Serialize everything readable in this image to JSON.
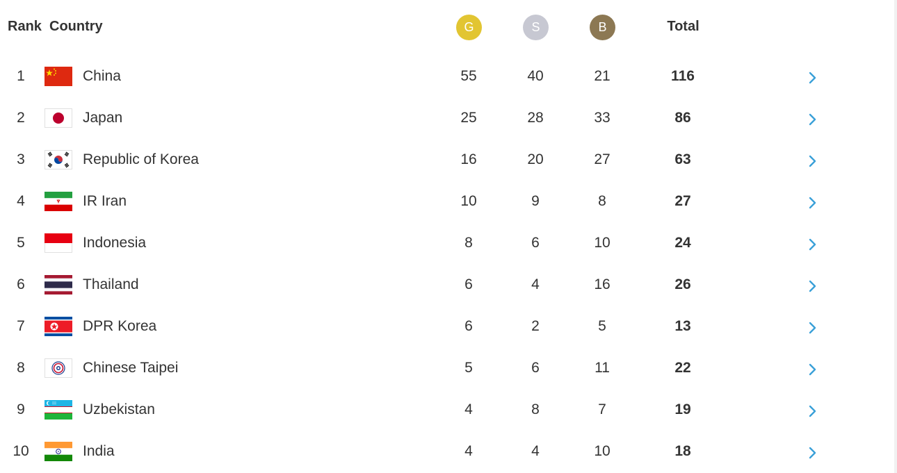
{
  "header": {
    "rank": "Rank",
    "country": "Country",
    "gold": "G",
    "silver": "S",
    "bronze": "B",
    "total": "Total"
  },
  "colors": {
    "gold": "#E2C532",
    "silver": "#C7C8D2",
    "bronze": "#8C7853",
    "arrow": "#3AA0D8",
    "text": "#333333"
  },
  "rows": [
    {
      "rank": "1",
      "country": "China",
      "flag": "china-flag-icon",
      "gold": "55",
      "silver": "40",
      "bronze": "21",
      "total": "116"
    },
    {
      "rank": "2",
      "country": "Japan",
      "flag": "japan-flag-icon",
      "gold": "25",
      "silver": "28",
      "bronze": "33",
      "total": "86"
    },
    {
      "rank": "3",
      "country": "Republic of Korea",
      "flag": "korea-flag-icon",
      "gold": "16",
      "silver": "20",
      "bronze": "27",
      "total": "63"
    },
    {
      "rank": "4",
      "country": "IR Iran",
      "flag": "iran-flag-icon",
      "gold": "10",
      "silver": "9",
      "bronze": "8",
      "total": "27"
    },
    {
      "rank": "5",
      "country": "Indonesia",
      "flag": "indonesia-flag-icon",
      "gold": "8",
      "silver": "6",
      "bronze": "10",
      "total": "24"
    },
    {
      "rank": "6",
      "country": "Thailand",
      "flag": "thailand-flag-icon",
      "gold": "6",
      "silver": "4",
      "bronze": "16",
      "total": "26"
    },
    {
      "rank": "7",
      "country": "DPR Korea",
      "flag": "dpr-korea-flag-icon",
      "gold": "6",
      "silver": "2",
      "bronze": "5",
      "total": "13"
    },
    {
      "rank": "8",
      "country": "Chinese Taipei",
      "flag": "chinese-taipei-flag-icon",
      "gold": "5",
      "silver": "6",
      "bronze": "11",
      "total": "22"
    },
    {
      "rank": "9",
      "country": "Uzbekistan",
      "flag": "uzbekistan-flag-icon",
      "gold": "4",
      "silver": "8",
      "bronze": "7",
      "total": "19"
    },
    {
      "rank": "10",
      "country": "India",
      "flag": "india-flag-icon",
      "gold": "4",
      "silver": "4",
      "bronze": "10",
      "total": "18"
    }
  ]
}
